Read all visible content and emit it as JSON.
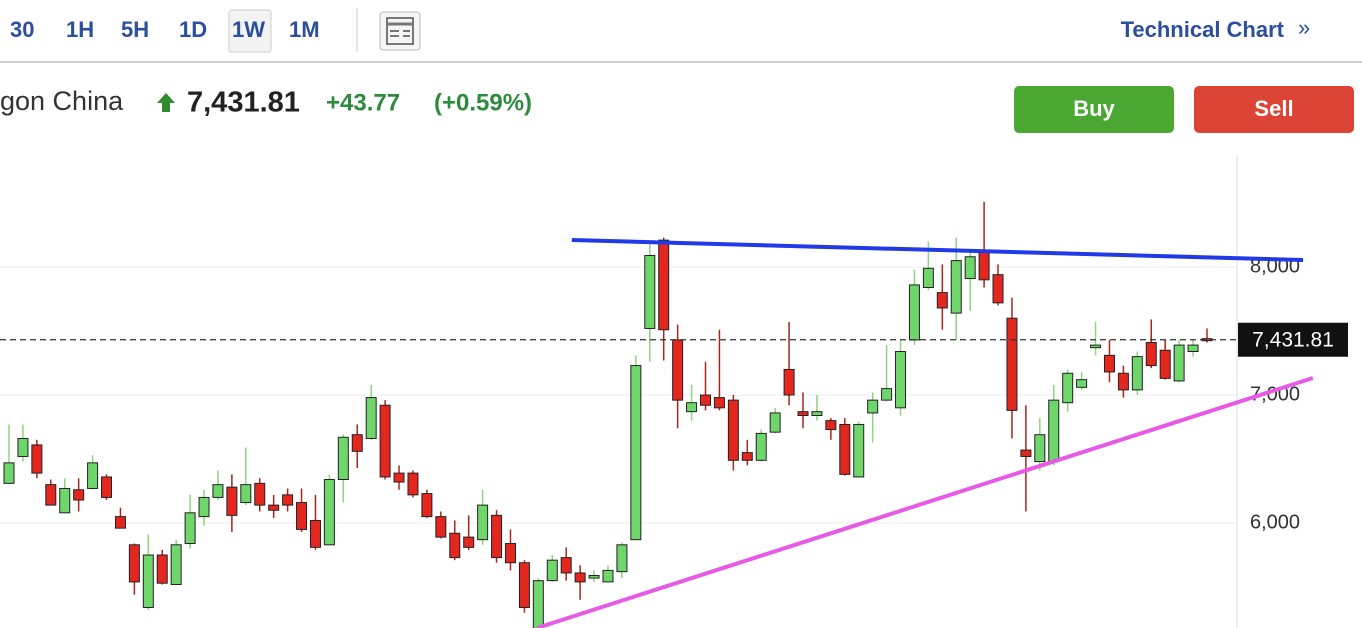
{
  "toolbar": {
    "intervals": [
      "30",
      "1H",
      "5H",
      "1D",
      "1W",
      "1M"
    ],
    "active_interval": 4,
    "link": "Technical Chart",
    "link_arrow": "»"
  },
  "header": {
    "name": "gon China",
    "price": "7,431.81",
    "change": "+43.77",
    "change_pct": "(+0.59%)"
  },
  "buttons": {
    "buy": "Buy",
    "sell": "Sell"
  },
  "chart_data": {
    "type": "candlestick",
    "open": [
      6310,
      6520,
      6610,
      6300,
      6080,
      6260,
      6270,
      6360,
      6050,
      5830,
      5340,
      5750,
      5520,
      5840,
      6050,
      6200,
      6280,
      6160,
      6310,
      6140,
      6220,
      6160,
      6020,
      5830,
      6340,
      6690,
      6660,
      6920,
      6390,
      6390,
      6230,
      6050,
      5920,
      5890,
      5870,
      6060,
      5840,
      5690,
      5170,
      5550,
      5730,
      5610,
      5570,
      5540,
      5620,
      5870,
      7520,
      8210,
      7430,
      6870,
      7000,
      6980,
      6960,
      6550,
      6490,
      6710,
      7200,
      6870,
      6840,
      6800,
      6770,
      6360,
      6860,
      6960,
      6900,
      7430,
      7840,
      7800,
      7640,
      7910,
      8130,
      7940,
      7600,
      6570,
      6480,
      6480,
      6940,
      7060,
      7370,
      7310,
      7170,
      7040,
      7410,
      7350,
      7110,
      7340,
      7440
    ],
    "high": [
      6770,
      6770,
      6650,
      6340,
      6350,
      6350,
      6530,
      6380,
      6120,
      5840,
      5910,
      5790,
      5870,
      6220,
      6260,
      6410,
      6380,
      6590,
      6350,
      6220,
      6270,
      6270,
      6220,
      6380,
      6690,
      6770,
      7080,
      6960,
      6450,
      6410,
      6260,
      6090,
      6020,
      6060,
      6260,
      6100,
      5950,
      5710,
      5570,
      5750,
      5810,
      5670,
      5630,
      5670,
      5850,
      7310,
      8210,
      8230,
      7550,
      7080,
      7260,
      7510,
      7000,
      6650,
      6730,
      6900,
      7570,
      7020,
      7000,
      6820,
      6820,
      6790,
      7020,
      7390,
      7430,
      7980,
      8200,
      8020,
      8230,
      8130,
      8510,
      8020,
      7760,
      6920,
      6820,
      7080,
      7200,
      7180,
      7570,
      7430,
      7230,
      7340,
      7590,
      7430,
      7430,
      7430,
      7520
    ],
    "low": [
      6310,
      6480,
      6350,
      6140,
      6080,
      6090,
      6260,
      6180,
      5960,
      5440,
      5320,
      5520,
      5520,
      5800,
      5980,
      6180,
      5930,
      6140,
      6090,
      6040,
      6090,
      5930,
      5790,
      5830,
      6160,
      6430,
      6650,
      6340,
      6260,
      6200,
      6040,
      5880,
      5710,
      5790,
      5830,
      5690,
      5630,
      5300,
      5150,
      5540,
      5550,
      5400,
      5540,
      5540,
      5570,
      5870,
      7260,
      7270,
      6740,
      6800,
      6880,
      6880,
      6410,
      6450,
      6480,
      6700,
      6920,
      6740,
      6800,
      6650,
      6370,
      6360,
      6630,
      6950,
      6840,
      7390,
      7820,
      7510,
      7430,
      7660,
      7840,
      7700,
      6660,
      6090,
      6410,
      6450,
      6870,
      7040,
      7310,
      7100,
      6980,
      7000,
      7210,
      7120,
      7100,
      7300,
      7410
    ],
    "close": [
      6470,
      6660,
      6390,
      6140,
      6270,
      6180,
      6470,
      6200,
      5960,
      5540,
      5750,
      5530,
      5830,
      6080,
      6200,
      6300,
      6060,
      6300,
      6140,
      6100,
      6140,
      5950,
      5810,
      6340,
      6670,
      6560,
      6980,
      6360,
      6320,
      6220,
      6050,
      5890,
      5730,
      5810,
      6140,
      5730,
      5690,
      5340,
      5550,
      5710,
      5610,
      5540,
      5590,
      5630,
      5830,
      7230,
      8090,
      7510,
      6960,
      6940,
      6920,
      6900,
      6490,
      6490,
      6700,
      6860,
      7000,
      6840,
      6870,
      6730,
      6380,
      6770,
      6960,
      7050,
      7340,
      7860,
      7990,
      7680,
      8050,
      8080,
      7900,
      7720,
      6880,
      6520,
      6690,
      6960,
      7170,
      7120,
      7390,
      7180,
      7040,
      7300,
      7230,
      7130,
      7390,
      7390,
      7431.81
    ],
    "up_color": "#6fd66b",
    "down_color": "#e3271f",
    "up_wick": "#8fd47f",
    "down_wick": "#a8261e",
    "ylim": [
      5180,
      8875
    ],
    "yticks": [
      {
        "value": 6000,
        "label": "6,000"
      },
      {
        "value": 7000,
        "label": "7,000"
      },
      {
        "value": 8000,
        "label": "8,000"
      }
    ],
    "grid": true,
    "last_price": {
      "value": 7431.81,
      "label": "7,431.81"
    },
    "trendlines": [
      {
        "color": "#1f3ae6",
        "points": [
          [
            40.4,
            8211
          ],
          [
            92.9,
            8055
          ]
        ]
      },
      {
        "color": "#e65ae6",
        "points": [
          [
            37.9,
            5180
          ],
          [
            93.6,
            7133
          ]
        ]
      }
    ]
  }
}
